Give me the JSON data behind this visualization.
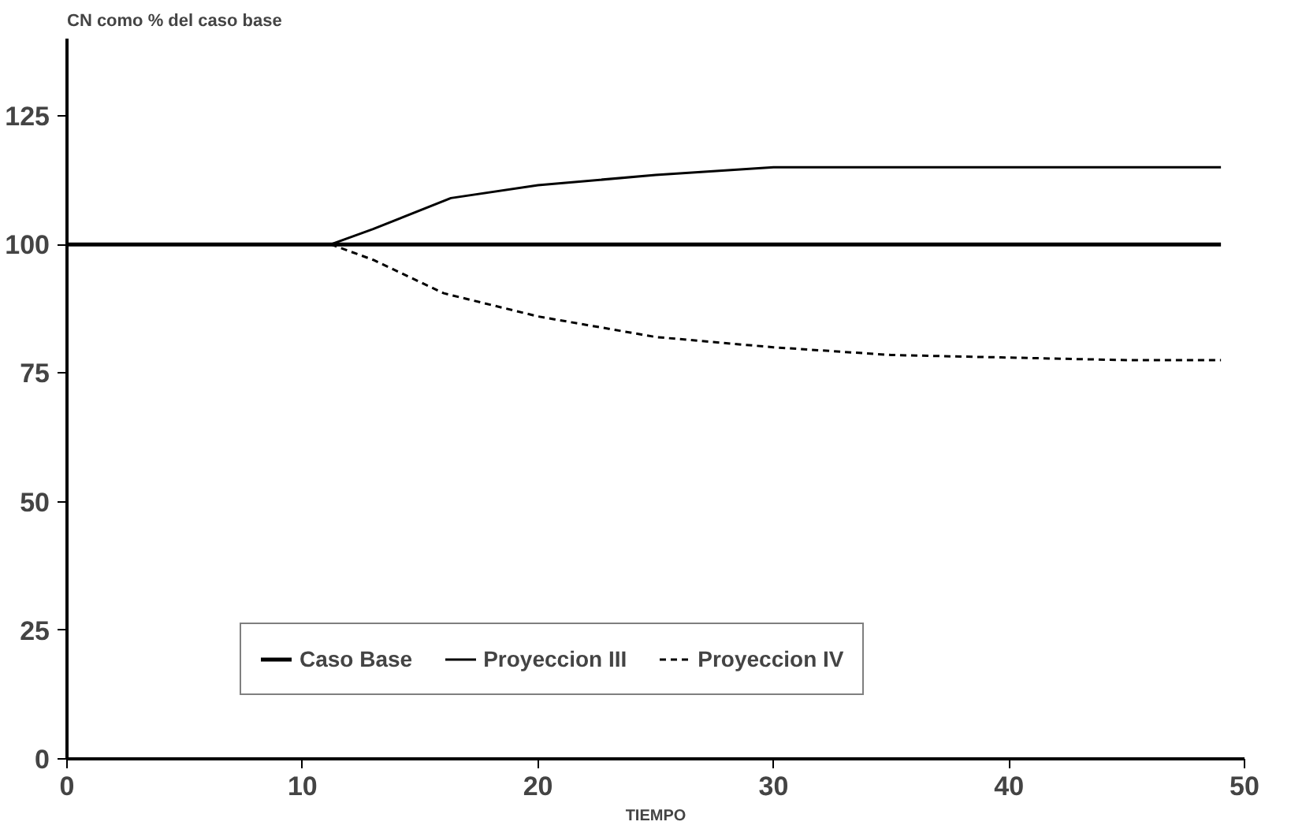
{
  "chart_data": {
    "type": "line",
    "ylabel": "CN como % del caso base",
    "xlabel": "TIEMPO",
    "xlim": [
      0,
      50
    ],
    "ylim": [
      0,
      140
    ],
    "xticks": [
      0,
      10,
      20,
      30,
      40,
      50
    ],
    "yticks": [
      0,
      25,
      50,
      75,
      100,
      125
    ],
    "grid": false,
    "legend": "bottom",
    "marker": "none",
    "series": [
      {
        "name": "Caso Base",
        "color": "#000000",
        "line_style": "solid",
        "x": [
          0,
          49
        ],
        "values": [
          100,
          100
        ]
      },
      {
        "name": "Proyeccion III",
        "color": "#000000",
        "line_style": "solid",
        "x": [
          11.2,
          13,
          16.3,
          20,
          25,
          30,
          35,
          40,
          45,
          49
        ],
        "values": [
          100,
          103,
          109,
          111.5,
          113.5,
          115,
          115,
          115,
          115,
          115
        ]
      },
      {
        "name": "Proyeccion IV",
        "color": "#000000",
        "line_style": "dashed",
        "x": [
          11.2,
          13,
          16,
          20,
          25,
          30,
          35,
          40,
          45,
          49
        ],
        "values": [
          100,
          97,
          90.5,
          86,
          82,
          80,
          78.5,
          78,
          77.5,
          77.5
        ]
      }
    ]
  }
}
